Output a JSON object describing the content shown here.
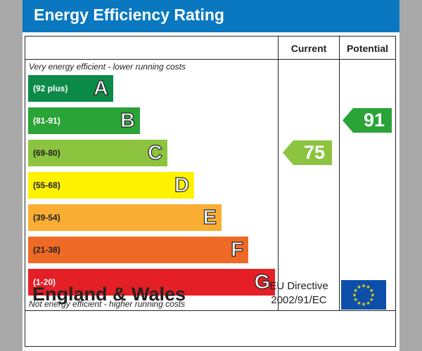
{
  "title": "Energy Efficiency Rating",
  "columns": {
    "current": "Current",
    "potential": "Potential"
  },
  "notes": {
    "top": "Very energy efficient - lower running costs",
    "bottom": "Not energy efficient - higher running costs"
  },
  "footer": {
    "region": "England & Wales",
    "directive_line1": "EU Directive",
    "directive_line2": "2002/91/EC"
  },
  "chart_data": {
    "type": "table",
    "bands": [
      {
        "letter": "A",
        "range": "(92 plus)",
        "color": "#0c8a47",
        "text_color": "#ffffff"
      },
      {
        "letter": "B",
        "range": "(81-91)",
        "color": "#2aa337",
        "text_color": "#ffffff"
      },
      {
        "letter": "C",
        "range": "(69-80)",
        "color": "#8cc43f",
        "text_color": "#222222"
      },
      {
        "letter": "D",
        "range": "(55-68)",
        "color": "#fff200",
        "text_color": "#222222"
      },
      {
        "letter": "E",
        "range": "(39-54)",
        "color": "#f9ae33",
        "text_color": "#222222"
      },
      {
        "letter": "F",
        "range": "(21-38)",
        "color": "#ef6a26",
        "text_color": "#222222"
      },
      {
        "letter": "G",
        "range": "(1-20)",
        "color": "#e41f26",
        "text_color": "#ffffff"
      }
    ],
    "current": {
      "value": 75,
      "band": "C",
      "color": "#8cc43f"
    },
    "potential": {
      "value": 91,
      "band": "B",
      "color": "#2aa337"
    }
  }
}
